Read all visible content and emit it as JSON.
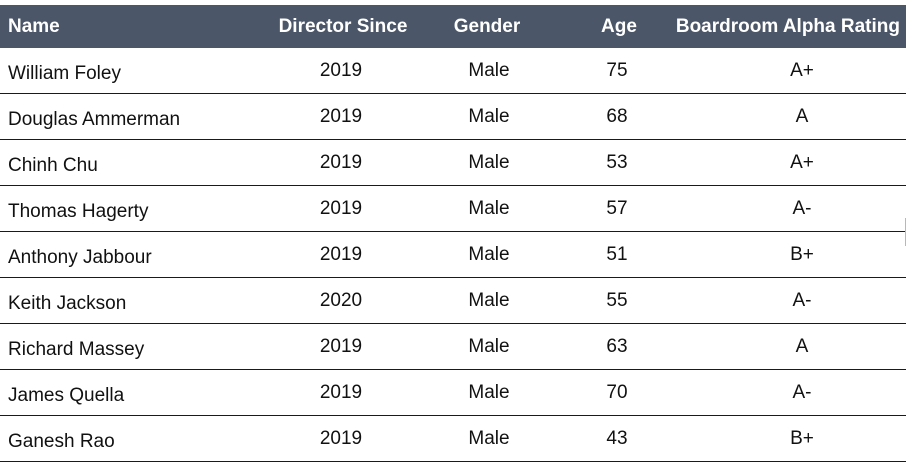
{
  "table": {
    "headers": {
      "name": "Name",
      "director_since": "Director Since",
      "gender": "Gender",
      "age": "Age",
      "rating": "Boardroom Alpha Rating"
    },
    "rows": [
      {
        "name": "William Foley",
        "director_since": "2019",
        "gender": "Male",
        "age": "75",
        "rating": "A+"
      },
      {
        "name": "Douglas Ammerman",
        "director_since": "2019",
        "gender": "Male",
        "age": "68",
        "rating": "A"
      },
      {
        "name": "Chinh Chu",
        "director_since": "2019",
        "gender": "Male",
        "age": "53",
        "rating": "A+"
      },
      {
        "name": "Thomas Hagerty",
        "director_since": "2019",
        "gender": "Male",
        "age": "57",
        "rating": "A-"
      },
      {
        "name": "Anthony Jabbour",
        "director_since": "2019",
        "gender": "Male",
        "age": "51",
        "rating": "B+"
      },
      {
        "name": "Keith Jackson",
        "director_since": "2020",
        "gender": "Male",
        "age": "55",
        "rating": "A-"
      },
      {
        "name": "Richard Massey",
        "director_since": "2019",
        "gender": "Male",
        "age": "63",
        "rating": "A"
      },
      {
        "name": "James Quella",
        "director_since": "2019",
        "gender": "Male",
        "age": "70",
        "rating": "A-"
      },
      {
        "name": "Ganesh Rao",
        "director_since": "2019",
        "gender": "Male",
        "age": "43",
        "rating": "B+"
      }
    ]
  },
  "colors": {
    "header_background": "#4b5668",
    "header_text": "#ffffff",
    "row_border": "#1a1a1a"
  }
}
